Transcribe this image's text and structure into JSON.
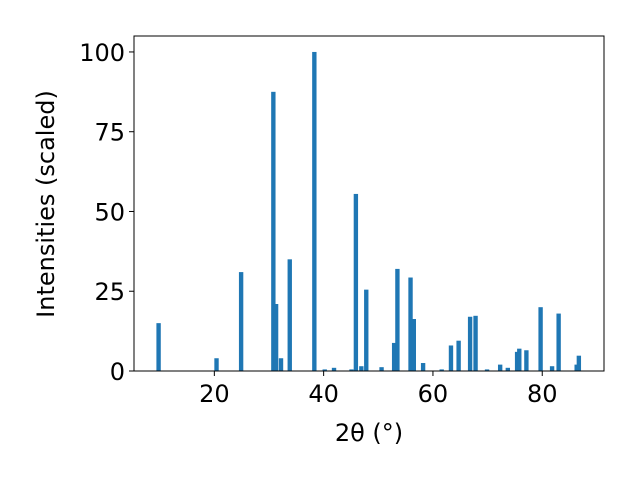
{
  "chart_data": {
    "type": "bar",
    "xlabel": "2θ (°)",
    "ylabel": "Intensities (scaled)",
    "xlim": [
      5.3,
      91.3
    ],
    "ylim": [
      0,
      105
    ],
    "xticks": [
      20,
      40,
      60,
      80
    ],
    "yticks": [
      0,
      25,
      50,
      75,
      100
    ],
    "bar_color": "#1f77b4",
    "bar_width": 0.8,
    "grid": false,
    "x": [
      9.8,
      20.4,
      24.9,
      30.8,
      31.3,
      32.2,
      33.8,
      38.3,
      40.2,
      41.9,
      45.1,
      45.9,
      46.9,
      47.8,
      50.6,
      52.9,
      53.5,
      55.9,
      56.5,
      58.2,
      61.6,
      63.3,
      64.7,
      66.8,
      67.8,
      69.9,
      72.3,
      73.7,
      75.4,
      75.8,
      77.1,
      79.7,
      81.8,
      83.0,
      86.3,
      86.7
    ],
    "values": [
      15,
      4,
      31,
      87.5,
      21,
      4,
      35,
      100,
      0.5,
      1,
      0.5,
      55.5,
      1.5,
      25.5,
      1.2,
      8.8,
      32,
      29.3,
      16.3,
      2.5,
      0.5,
      8,
      9.5,
      17,
      17.3,
      0.5,
      2,
      1,
      6,
      7,
      6.5,
      20,
      1.5,
      18,
      2,
      4.8
    ]
  }
}
